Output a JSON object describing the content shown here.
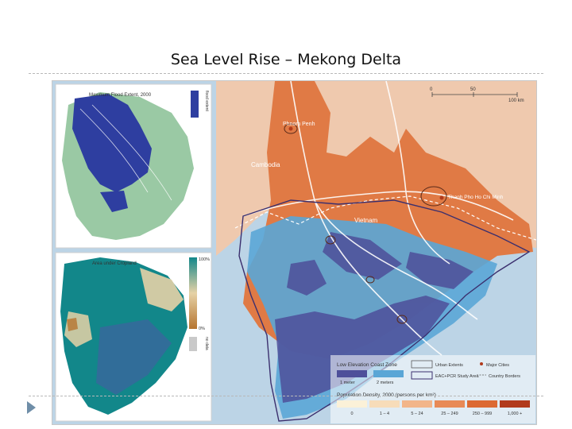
{
  "slide": {
    "title": "Sea Level Rise – Mekong Delta"
  },
  "inset_flood": {
    "title": "Maximum Flood Extent, 2000",
    "legend": "flood extent",
    "colors": {
      "flood": "#2e3ea0",
      "land": "#9ac9a4"
    }
  },
  "inset_crop": {
    "title": "Area under Cropland",
    "legend_top": "100%",
    "legend_bottom": "0%",
    "legend_nodata": "no data",
    "colors": {
      "high": "#12878a",
      "mid": "#e6d2a6",
      "low": "#b5742f"
    }
  },
  "main_map": {
    "places": {
      "phnom_penh": "Phnom Penh",
      "cambodia": "Cambodia",
      "vietnam": "Vietnam",
      "ho_chi_minh": "Thanh Pho Ho Chi Minh"
    },
    "scale": {
      "zero": "0",
      "mid": "50",
      "max": "100 km"
    },
    "legend": {
      "lecz_title": "Low Elevation Coast Zone",
      "lecz_1m": "1 meter",
      "lecz_2m": "2 meters",
      "urban": "Urban Extents",
      "study_area": "EAC+PCR Study Area",
      "major_cities": "Major Cities",
      "country_borders": "Country Borders",
      "density_title": "Population Density, 2000 (persons per km²)",
      "density_bins": [
        "0",
        "1 – 4",
        "5 – 24",
        "25 – 249",
        "250 – 999",
        "1,000 +"
      ]
    },
    "colors": {
      "sea": "#bcd4e6",
      "land_light": "#efc9ae",
      "land_orange": "#e07a45",
      "lecz_1m": "#4e4f9a",
      "lecz_2m": "#5aa6d6",
      "density": [
        "#fbf1d8",
        "#f7dcb9",
        "#f2b58a",
        "#e88a57",
        "#dc6a33",
        "#b13a1c"
      ]
    }
  }
}
